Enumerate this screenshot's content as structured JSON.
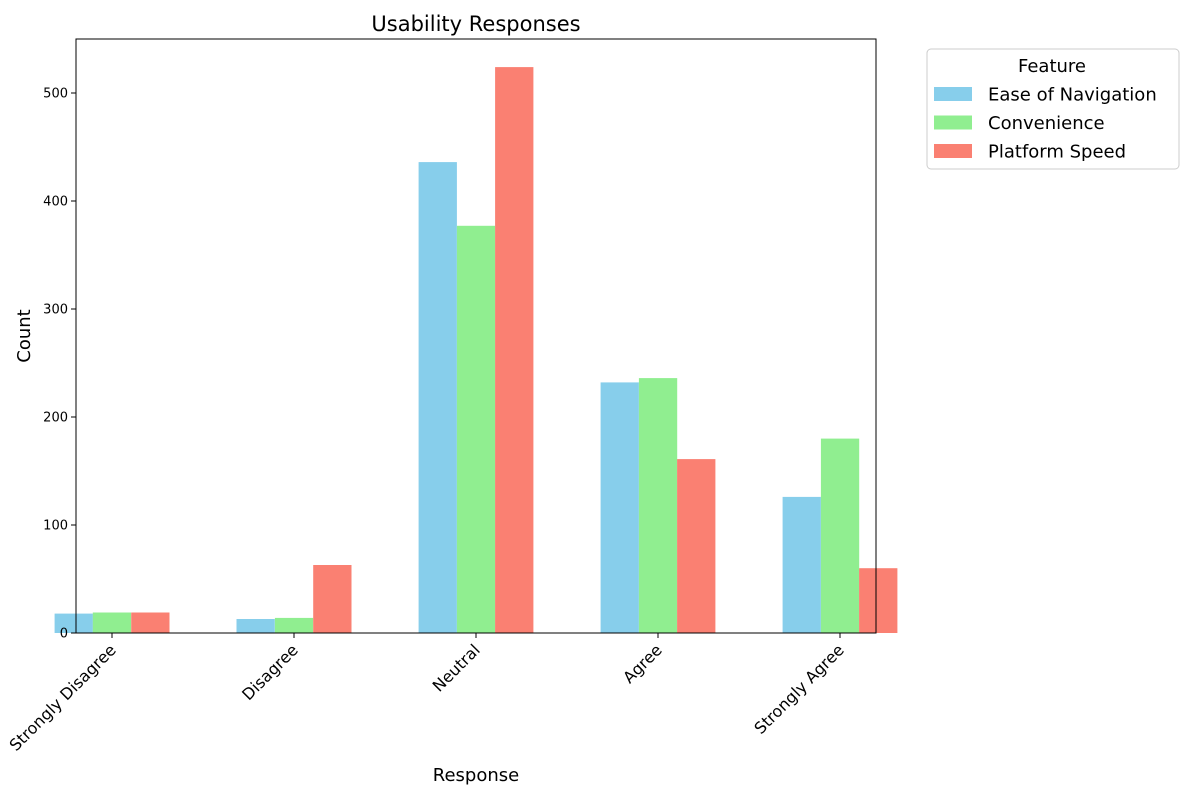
{
  "chart_data": {
    "type": "bar",
    "title": "Usability Responses",
    "xlabel": "Response",
    "ylabel": "Count",
    "categories": [
      "Strongly Disagree",
      "Disagree",
      "Neutral",
      "Agree",
      "Strongly Agree"
    ],
    "series": [
      {
        "name": "Ease of Navigation",
        "color": "#87ceeb",
        "values": [
          18,
          13,
          436,
          232,
          126
        ]
      },
      {
        "name": "Convenience",
        "color": "#90ee90",
        "values": [
          19,
          14,
          377,
          236,
          180
        ]
      },
      {
        "name": "Platform Speed",
        "color": "#fa8072",
        "values": [
          19,
          63,
          524,
          161,
          60
        ]
      }
    ],
    "ylim": [
      0,
      550
    ],
    "yticks": [
      "0",
      "100",
      "200",
      "300",
      "400",
      "500"
    ],
    "grid": false,
    "legend": {
      "title": "Feature",
      "placement": "outside-top-right"
    }
  }
}
